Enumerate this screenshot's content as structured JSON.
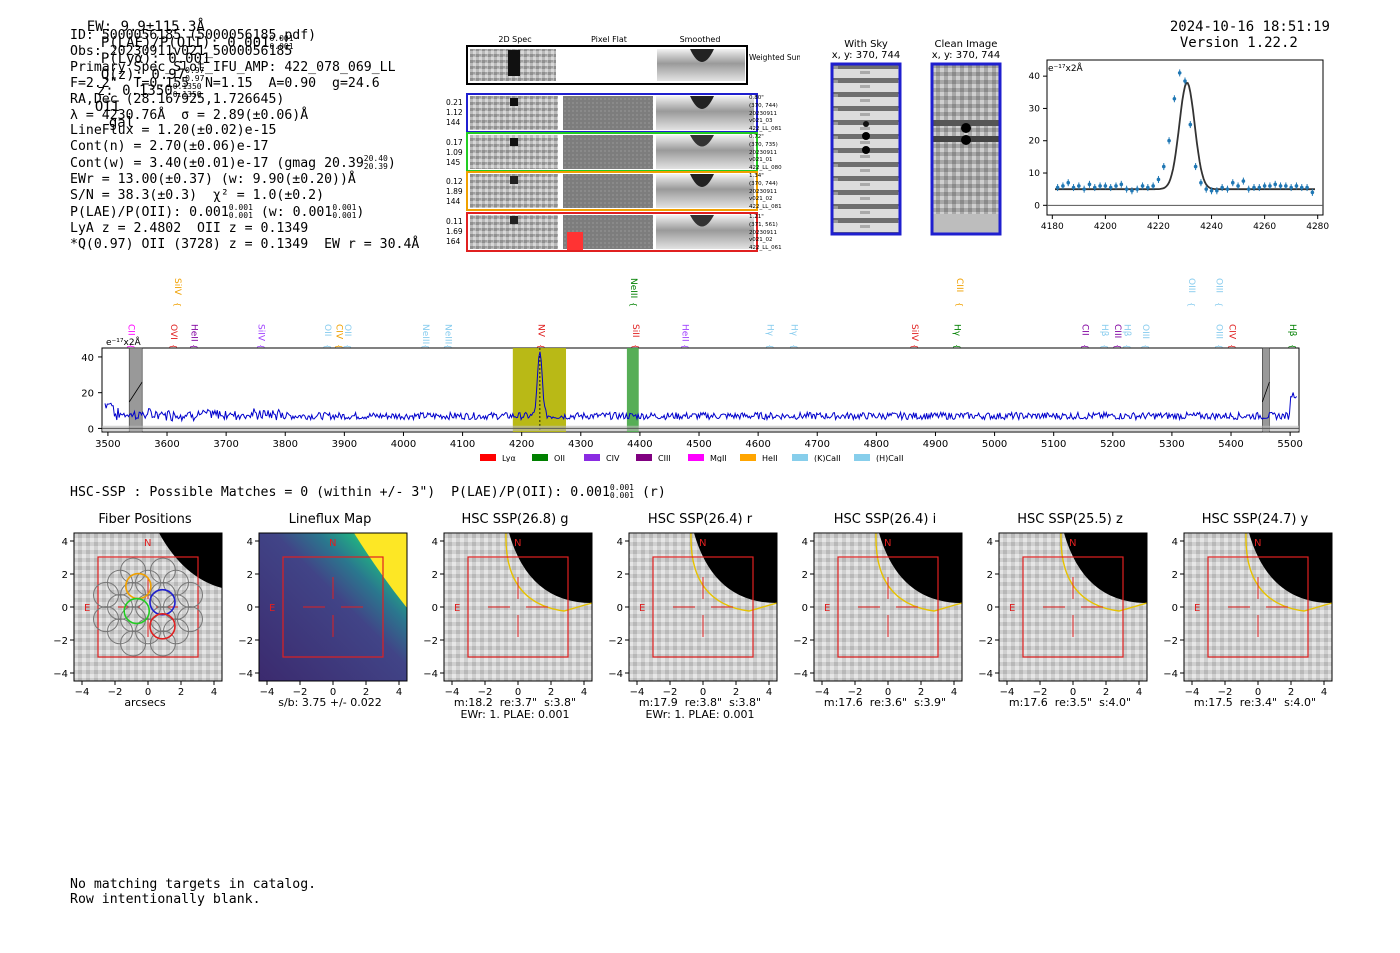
{
  "header": {
    "ew": "EW: 9.9±115.3Å",
    "plae_label": "P(LAE)/P(OII): 0.001",
    "plae_sup": "0.001",
    "plae_sub": "0.001",
    "plya": "P(Lyα): 0.001",
    "qz_label": "Q(z): 0.97",
    "qz_sup": "0.97",
    "qz_sub": "0.97",
    "z_label": "z: 0.1350",
    "z_sup": "0.1350",
    "z_sub": "0.1350",
    "z_line": "OII",
    "classification": "gal",
    "timestamp": "2024-10-16 18:51:19",
    "version": "Version 1.22.2"
  },
  "info": {
    "line1": "ID: 5000056185 (5000056185.pdf)",
    "line2": "Obs: 20230911v021_5000056185",
    "line3": "Primary Spec_Slot_IFU_AMP: 422_078_069_LL",
    "line4": "F=2.2\"  T=0.155  N=1.15  A=0.90  g=24.6",
    "line5": "RA,Dec (28.167925,1.726645)",
    "line6": "λ = 4230.76Å  σ = 2.89(±0.06)Å",
    "line7": "LineFlux = 1.20(±0.02)e-15",
    "line8": "Cont(n) = 2.70(±0.06)e-17",
    "line9": "Cont(w) = 3.40(±0.01)e-17 (gmag 20.39",
    "line9_sup": "20.40",
    "line9_sub": "20.39",
    "line10": "EWr = 13.00(±0.37) (w: 9.90(±0.20))Å",
    "line11": "S/N = 38.3(±0.3)  χ² = 1.0(±0.2)",
    "line12a": "P(LAE)/P(OII): 0.001",
    "line12_sup": "0.001",
    "line12_sub": "0.001",
    "line12b": "(w: 0.001",
    "line12b_sup": "0.001",
    "line12b_sub": "0.001",
    "line13": "LyA z = 2.4802  OII z = 0.1349",
    "line14": "*Q(0.97) OII (3728) z = 0.1349  EW r = 30.4Å"
  },
  "cutouts": {
    "col_headers": [
      "2D Spec",
      "Pixel Flat",
      "Smoothed"
    ],
    "weighted_sum": "Weighted Sum",
    "rows": [
      {
        "left": [
          "0.21",
          "1.12",
          "144"
        ],
        "right": [
          "0.80\"",
          "(370, 744)",
          "20230911",
          "v021_03",
          "422_LL_081"
        ],
        "color": "#1f1fcf"
      },
      {
        "left": [
          "0.17",
          "1.09",
          "145"
        ],
        "right": [
          "0.72\"",
          "(370, 735)",
          "20230911",
          "v021_01",
          "422_LL_080"
        ],
        "color": "#22cc22"
      },
      {
        "left": [
          "0.12",
          "1.89",
          "144"
        ],
        "right": [
          "1.34\"",
          "(370, 744)",
          "20230911",
          "v021_02",
          "422_LL_081"
        ],
        "color": "#f0a000"
      },
      {
        "left": [
          "0.11",
          "1.69",
          "164"
        ],
        "right": [
          "1.21\"",
          "(371, 561)",
          "20230911",
          "v021_02",
          "422_LL_061"
        ],
        "color": "#e02020"
      }
    ]
  },
  "sky": {
    "with_sky_title": "With Sky",
    "with_sky_xy": "x, y: 370, 744",
    "clean_title": "Clean Image",
    "clean_xy": "x, y: 370, 744"
  },
  "zoom_fit": {
    "unit_label": "e⁻¹⁷x2Å",
    "x_ticks": [
      "4180",
      "4200",
      "4220",
      "4240",
      "4260",
      "4280"
    ],
    "y_ticks": [
      "0",
      "10",
      "20",
      "30",
      "40"
    ]
  },
  "full_spectrum": {
    "unit_label": "e⁻¹⁷x2Å",
    "x_ticks": [
      "3500",
      "3600",
      "3700",
      "3800",
      "3900",
      "4000",
      "4100",
      "4200",
      "4300",
      "4400",
      "4500",
      "4600",
      "4700",
      "4800",
      "4900",
      "5000",
      "5100",
      "5200",
      "5300",
      "5400",
      "5500"
    ],
    "y_ticks": [
      "0",
      "20",
      "40"
    ],
    "line_labels": [
      {
        "text": "CII",
        "w": 3530,
        "row": "low",
        "color": "#ff00ff"
      },
      {
        "text": "SiIV",
        "w": 3608,
        "row": "high",
        "color": "#f0a000"
      },
      {
        "text": "OVI",
        "w": 3602,
        "row": "low",
        "color": "#e02020"
      },
      {
        "text": "HeII",
        "w": 3636,
        "row": "low",
        "color": "#8000a0"
      },
      {
        "text": "SiIV",
        "w": 3750,
        "row": "low",
        "color": "#a040ff"
      },
      {
        "text": "OII",
        "w": 3862,
        "row": "low",
        "color": "#88ccee"
      },
      {
        "text": "CIV",
        "w": 3882,
        "row": "low",
        "color": "#f0a000"
      },
      {
        "text": "OII",
        "w": 3896,
        "row": "low",
        "color": "#88ccee"
      },
      {
        "text": "NeIII",
        "w": 4028,
        "row": "low",
        "color": "#88ccee"
      },
      {
        "text": "NeIII",
        "w": 4066,
        "row": "low",
        "color": "#88ccee"
      },
      {
        "text": "NV",
        "w": 4223,
        "row": "low",
        "color": "#e02020"
      },
      {
        "text": "NeIII",
        "w": 4380,
        "row": "high",
        "color": "#008000"
      },
      {
        "text": "SiII",
        "w": 4383,
        "row": "low",
        "color": "#e02020"
      },
      {
        "text": "HeII",
        "w": 4467,
        "row": "low",
        "color": "#a040ff"
      },
      {
        "text": "Hγ",
        "w": 4611,
        "row": "low",
        "color": "#88ccee"
      },
      {
        "text": "Hγ",
        "w": 4651,
        "row": "low",
        "color": "#88ccee"
      },
      {
        "text": "SiIV",
        "w": 4855,
        "row": "low",
        "color": "#e02020"
      },
      {
        "text": "CIII",
        "w": 4931,
        "row": "high",
        "color": "#f0a000"
      },
      {
        "text": "Hγ",
        "w": 4927,
        "row": "low",
        "color": "#008000"
      },
      {
        "text": "CII",
        "w": 5144,
        "row": "low",
        "color": "#8000a0"
      },
      {
        "text": "Hβ",
        "w": 5177,
        "row": "low",
        "color": "#88ccee"
      },
      {
        "text": "CIII",
        "w": 5199,
        "row": "low",
        "color": "#8000a0"
      },
      {
        "text": "Hβ",
        "w": 5215,
        "row": "low",
        "color": "#88ccee"
      },
      {
        "text": "OIII",
        "w": 5246,
        "row": "low",
        "color": "#88ccee"
      },
      {
        "text": "OIII",
        "w": 5324,
        "row": "high",
        "color": "#88ccee"
      },
      {
        "text": "OIII",
        "w": 5370,
        "row": "high",
        "color": "#88ccee"
      },
      {
        "text": "OIII",
        "w": 5370,
        "row": "low",
        "color": "#88ccee"
      },
      {
        "text": "CIV",
        "w": 5392,
        "row": "low",
        "color": "#e02020"
      },
      {
        "text": "Hβ",
        "w": 5495,
        "row": "low",
        "color": "#008000"
      }
    ],
    "legend": [
      {
        "label": "Lyα",
        "color": "#ff0000"
      },
      {
        "label": "OII",
        "color": "#008000"
      },
      {
        "label": "CIV",
        "color": "#8a2be2"
      },
      {
        "label": "CIII",
        "color": "#800080"
      },
      {
        "label": "MgII",
        "color": "#ff00ff"
      },
      {
        "label": "HeII",
        "color": "#ffa500"
      },
      {
        "label": "(K)CaII",
        "color": "#87ceeb"
      },
      {
        "label": "(H)CaII",
        "color": "#87ceeb"
      }
    ]
  },
  "hsc_summary": {
    "text": "HSC-SSP : Possible Matches = 0 (within +/- 3\")  P(LAE)/P(OII): 0.001",
    "sup": "0.001",
    "sub": "0.001",
    "suffix": "(r)"
  },
  "imaging_panels": [
    {
      "title": "Fiber Positions",
      "caption": "arcsecs"
    },
    {
      "title": "Lineflux Map",
      "caption": "s/b: 3.75 +/- 0.022"
    },
    {
      "title": "HSC SSP(26.8) g",
      "caption": "m:18.2  re:3.7\"  s:3.8\"\nEWr: 1. PLAE: 0.001"
    },
    {
      "title": "HSC SSP(26.4) r",
      "caption": "m:17.9  re:3.8\"  s:3.8\"\nEWr: 1. PLAE: 0.001"
    },
    {
      "title": "HSC SSP(26.4) i",
      "caption": "m:17.6  re:3.6\"  s:3.9\""
    },
    {
      "title": "HSC SSP(25.5) z",
      "caption": "m:17.6  re:3.5\"  s:4.0\""
    },
    {
      "title": "HSC SSP(24.7) y",
      "caption": "m:17.5  re:3.4\"  s:4.0\""
    }
  ],
  "panel_axis": {
    "x_ticks": [
      "−4",
      "−2",
      "0",
      "2",
      "4"
    ],
    "y_ticks": [
      "4",
      "2",
      "0",
      "−2",
      "−4"
    ],
    "north": "N",
    "east": "E"
  },
  "footer": {
    "line1": "No matching targets in catalog.",
    "line2": "Row intentionally blank."
  },
  "chart_data": [
    {
      "type": "scatter",
      "title": "",
      "xlabel": "",
      "ylabel": "e-17x2Å",
      "xlim": [
        4178,
        4282
      ],
      "ylim": [
        -3,
        45
      ],
      "x": [
        4182,
        4184,
        4186,
        4188,
        4190,
        4192,
        4194,
        4196,
        4198,
        4200,
        4202,
        4204,
        4206,
        4208,
        4210,
        4212,
        4214,
        4216,
        4218,
        4220,
        4222,
        4224,
        4226,
        4228,
        4230,
        4232,
        4234,
        4236,
        4238,
        4240,
        4242,
        4244,
        4246,
        4248,
        4250,
        4252,
        4254,
        4256,
        4258,
        4260,
        4262,
        4264,
        4266,
        4268,
        4270,
        4272,
        4274,
        4276,
        4278
      ],
      "y": [
        5.5,
        6,
        7,
        5.5,
        6,
        5,
        6.5,
        5.5,
        6,
        6,
        5.5,
        6,
        6.5,
        5,
        4.5,
        5,
        6,
        5.5,
        6,
        8,
        12,
        20,
        33,
        41,
        38.5,
        25,
        12,
        7,
        5,
        4.5,
        4.5,
        5.5,
        5,
        7,
        6,
        7.5,
        5,
        5.5,
        5.5,
        6,
        6,
        6.5,
        6,
        6,
        5.5,
        6,
        5.5,
        5.5,
        4
      ],
      "fit_peak_wavelength": 4230.76,
      "fit_sigma": 2.89,
      "fit_continuum": 5.0,
      "fit_amplitude": 33
    },
    {
      "type": "line",
      "title": "",
      "xlabel": "",
      "ylabel": "e-17x2Å",
      "xlim": [
        3490,
        5515
      ],
      "ylim": [
        -2,
        45
      ],
      "series_color": "#0000cc",
      "baseline_level": 7,
      "emission_line_wavelength": 4230.76,
      "emission_line_peak": 43,
      "highlight_bands": [
        {
          "range": [
            4185,
            4275
          ],
          "color": "#b5b50a"
        },
        {
          "range": [
            4378,
            4398
          ],
          "color": "#4daa4d"
        }
      ],
      "masked_regions": [
        {
          "range": [
            3536,
            3558
          ]
        },
        {
          "range": [
            5453,
            5465
          ]
        }
      ]
    }
  ]
}
